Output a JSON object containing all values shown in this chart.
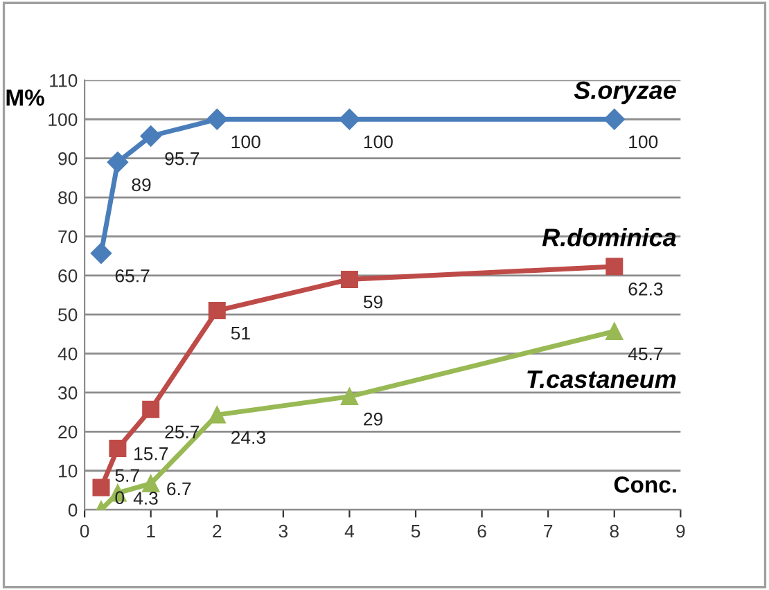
{
  "chart_data": {
    "type": "line",
    "xlabel": "Conc.",
    "ylabel": "M%",
    "x": [
      0.25,
      0.5,
      1,
      2,
      4,
      8
    ],
    "series": [
      {
        "name": "S.oryzae",
        "color": "#4a7ebb",
        "marker": "diamond",
        "values": [
          65.7,
          89,
          95.7,
          100,
          100,
          100
        ]
      },
      {
        "name": "R.dominica",
        "color": "#be4b48",
        "marker": "square",
        "values": [
          5.7,
          15.7,
          25.7,
          51,
          59,
          62.3
        ]
      },
      {
        "name": "T.castaneum",
        "color": "#98b954",
        "marker": "triangle",
        "values": [
          0,
          4.3,
          6.7,
          24.3,
          29,
          45.7
        ]
      }
    ],
    "xlim": [
      0,
      9
    ],
    "xticks": [
      0,
      1,
      2,
      3,
      4,
      5,
      6,
      7,
      8,
      9
    ],
    "ylim": [
      0,
      110
    ],
    "yticks": [
      0,
      10,
      20,
      30,
      40,
      50,
      60,
      70,
      80,
      90,
      100,
      110
    ],
    "grid": "y",
    "data_labels": true,
    "legend": false,
    "line_style": "solid"
  }
}
